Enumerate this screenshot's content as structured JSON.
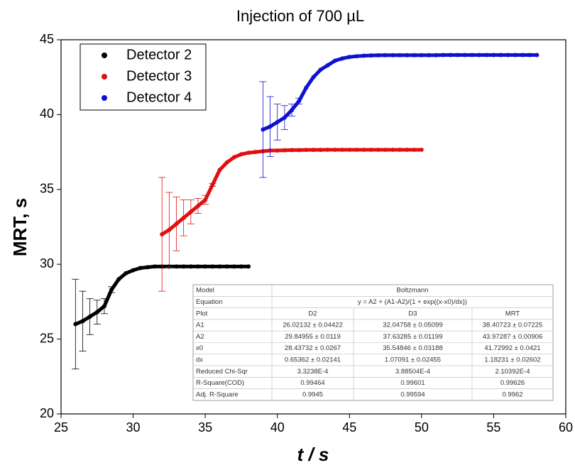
{
  "chart_data": {
    "type": "scatter",
    "title": "Injection of 700 µL",
    "x_label": "t / s",
    "y_label": "MRT, s",
    "xlim": [
      25,
      60
    ],
    "ylim": [
      20,
      45
    ],
    "xticks": [
      25,
      30,
      35,
      40,
      45,
      50,
      55,
      60
    ],
    "yticks": [
      20,
      25,
      30,
      35,
      40,
      45
    ],
    "legend": "upper left",
    "series": [
      {
        "name": "Detector 2",
        "color": "#000000",
        "x": [
          26,
          26.5,
          27,
          27.5,
          28,
          28.5,
          29,
          29.5,
          30,
          30.5,
          31,
          31.5,
          32,
          32.5,
          33,
          33.5,
          34,
          34.5,
          35,
          35.5,
          36,
          36.5,
          37,
          37.5,
          38
        ],
        "values": [
          26.0,
          26.2,
          26.5,
          26.8,
          27.2,
          28.3,
          29.0,
          29.4,
          29.6,
          29.75,
          29.8,
          29.85,
          29.85,
          29.85,
          29.85,
          29.85,
          29.85,
          29.85,
          29.85,
          29.85,
          29.85,
          29.85,
          29.85,
          29.85,
          29.85
        ],
        "errors": [
          3.0,
          2.0,
          1.2,
          0.8,
          0.5,
          0.2,
          0,
          0,
          0,
          0,
          0,
          0,
          0,
          0,
          0,
          0,
          0,
          0,
          0,
          0,
          0,
          0,
          0,
          0,
          0
        ]
      },
      {
        "name": "Detector 3",
        "color": "#e01010",
        "x": [
          32,
          32.5,
          33,
          33.5,
          34,
          34.5,
          35,
          35.5,
          36,
          36.5,
          37,
          37.5,
          38,
          38.5,
          39,
          39.5,
          40,
          40.5,
          41,
          41.5,
          42,
          42.5,
          43,
          43.5,
          44,
          44.5,
          45,
          45.5,
          46,
          46.5,
          47,
          47.5,
          48,
          48.5,
          49,
          49.5,
          50
        ],
        "values": [
          32.0,
          32.3,
          32.7,
          33.1,
          33.5,
          33.9,
          34.3,
          35.3,
          36.3,
          36.8,
          37.15,
          37.35,
          37.45,
          37.5,
          37.55,
          37.6,
          37.6,
          37.62,
          37.63,
          37.63,
          37.64,
          37.64,
          37.64,
          37.65,
          37.65,
          37.65,
          37.65,
          37.65,
          37.65,
          37.65,
          37.65,
          37.65,
          37.65,
          37.65,
          37.65,
          37.65,
          37.65
        ],
        "errors": [
          3.8,
          2.5,
          1.8,
          1.2,
          0.8,
          0.5,
          0.3,
          0.1,
          0,
          0,
          0,
          0,
          0,
          0,
          0,
          0,
          0,
          0,
          0,
          0,
          0,
          0,
          0,
          0,
          0,
          0,
          0,
          0,
          0,
          0,
          0,
          0,
          0,
          0,
          0,
          0,
          0
        ]
      },
      {
        "name": "Detector 4",
        "color": "#1010d0",
        "x": [
          39,
          39.5,
          40,
          40.5,
          41,
          41.5,
          42,
          42.5,
          43,
          43.5,
          44,
          44.5,
          45,
          45.5,
          46,
          46.5,
          47,
          47.5,
          48,
          48.5,
          49,
          49.5,
          50,
          50.5,
          51,
          51.5,
          52,
          52.5,
          53,
          53.5,
          54,
          54.5,
          55,
          55.5,
          56,
          56.5,
          57,
          57.5,
          58
        ],
        "values": [
          39.0,
          39.2,
          39.5,
          39.8,
          40.3,
          40.9,
          41.8,
          42.5,
          43.0,
          43.3,
          43.6,
          43.75,
          43.85,
          43.9,
          43.93,
          43.95,
          43.96,
          43.97,
          43.97,
          43.97,
          43.97,
          43.97,
          43.97,
          43.97,
          43.97,
          43.98,
          43.98,
          43.98,
          43.98,
          43.98,
          43.98,
          43.98,
          43.98,
          43.98,
          43.98,
          43.98,
          43.98,
          43.98,
          43.98
        ],
        "errors": [
          3.2,
          2.0,
          1.2,
          0.8,
          0.4,
          0.2,
          0,
          0,
          0,
          0,
          0,
          0,
          0,
          0,
          0,
          0,
          0,
          0,
          0,
          0,
          0,
          0,
          0,
          0,
          0,
          0,
          0,
          0,
          0,
          0,
          0,
          0,
          0,
          0,
          0,
          0,
          0,
          0,
          0
        ]
      }
    ]
  },
  "table": {
    "rows": [
      [
        "Model",
        "Boltzmann"
      ],
      [
        "Equation",
        "y = A2 + (A1-A2)/(1 + exp((x-x0)/dx))"
      ],
      [
        "Plot",
        "D2",
        "D3",
        "MRT"
      ],
      [
        "A1",
        "26.02132 ± 0.04422",
        "32.04758 ± 0.05099",
        "38.40723 ± 0.07225"
      ],
      [
        "A2",
        "29.84955 ± 0.0119",
        "37.63285 ± 0.01199",
        "43.97287 ± 0.00906"
      ],
      [
        "x0",
        "28.43732 ± 0.0267",
        "35.54846 ± 0.03188",
        "41.72992 ± 0.0421"
      ],
      [
        "dx",
        "0.65362 ± 0.02141",
        "1.07091 ± 0.02455",
        "1.18231 ± 0.02602"
      ],
      [
        "Reduced Chi-Sqr",
        "3.3238E-4",
        "3.88504E-4",
        "2.10392E-4"
      ],
      [
        "R-Square(COD)",
        "0.99464",
        "0.99601",
        "0.99626"
      ],
      [
        "Adj. R-Square",
        "0.9945",
        "0.99594",
        "0.9962"
      ]
    ]
  }
}
